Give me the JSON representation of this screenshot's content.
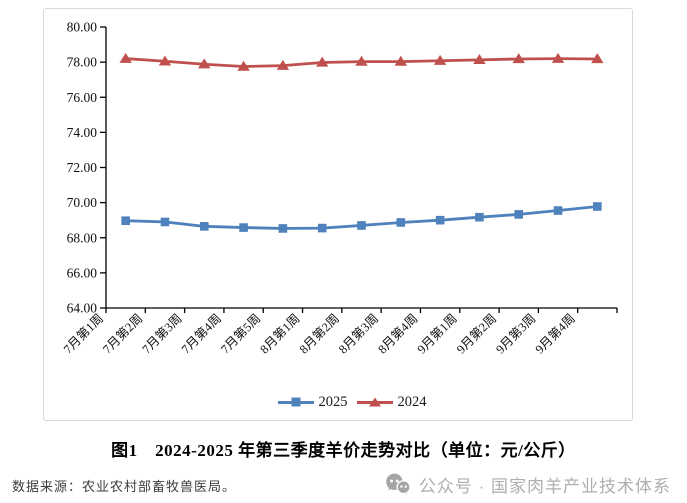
{
  "caption": {
    "text": "图1　2024-2025 年第三季度羊价走势对比（单位：元/公斤）"
  },
  "source": {
    "text": "数据来源：农业农村部畜牧兽医局。"
  },
  "watermark": {
    "text": "公众号 · 国家肉羊产业技术体系",
    "icon": "wechat-bubbles-icon",
    "color": "#aeaeae"
  },
  "chart_data": {
    "type": "line",
    "title": "",
    "categories": [
      "7月第1周",
      "7月第2周",
      "7月第3周",
      "7月第4周",
      "7月第5周",
      "8月第1周",
      "8月第2周",
      "8月第3周",
      "8月第4周",
      "9月第1周",
      "9月第2周",
      "9月第3周",
      "9月第4周"
    ],
    "series": [
      {
        "name": "2025",
        "color": "#4F81BD",
        "marker": "square",
        "values": [
          68.97,
          68.9,
          68.65,
          68.58,
          68.53,
          68.55,
          68.7,
          68.87,
          69.0,
          69.17,
          69.33,
          69.55,
          69.78
        ]
      },
      {
        "name": "2024",
        "color": "#C0504D",
        "marker": "triangle",
        "values": [
          78.2,
          78.05,
          77.88,
          77.75,
          77.8,
          77.98,
          78.03,
          78.03,
          78.08,
          78.13,
          78.18,
          78.2,
          78.18
        ]
      }
    ],
    "ylim": [
      64,
      80
    ],
    "ytick_labels": [
      "80.00",
      "78.00",
      "76.00",
      "74.00",
      "72.00",
      "70.00",
      "68.00",
      "66.00",
      "64.00"
    ],
    "grid": false,
    "legend_position": "bottom",
    "axis_color": "#000000"
  }
}
